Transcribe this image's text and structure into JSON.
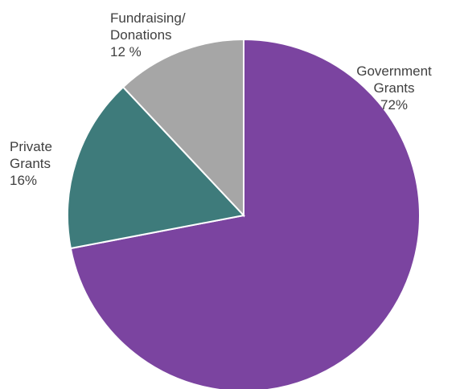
{
  "chart_data": {
    "type": "pie",
    "slices": [
      {
        "label_lines": [
          "Government",
          "Grants"
        ],
        "value": 72,
        "value_label": "72%",
        "color": "#7b44a0"
      },
      {
        "label_lines": [
          "Private",
          "Grants"
        ],
        "value": 16,
        "value_label": "16%",
        "color": "#3e7b7b"
      },
      {
        "label_lines": [
          "Fundraising/",
          "Donations"
        ],
        "value": 12,
        "value_label": "12 %",
        "color": "#a6a6a6"
      }
    ],
    "start_angle_deg": 0,
    "direction": "clockwise",
    "legend": "none"
  }
}
